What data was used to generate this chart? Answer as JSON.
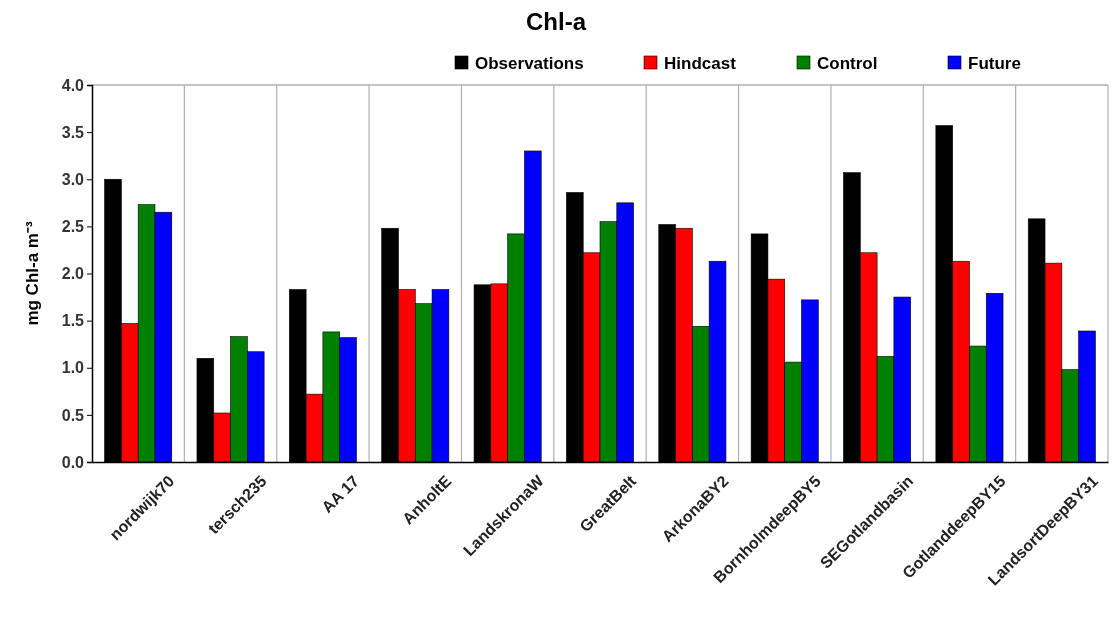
{
  "chart_data": {
    "type": "bar",
    "title": "Chl-a",
    "ylabel": "mg Chl-a m⁻³",
    "categories": [
      "nordwijk70",
      "tersch235",
      "AA 17",
      "AnholtE",
      "LandskronaW",
      "GreatBelt",
      "ArkonaBY2",
      "BornholmdeepBY5",
      "SEGotlandbasin",
      "GotlanddeepBY15",
      "LandsortDeepBY31"
    ],
    "series": [
      {
        "name": "Observations",
        "color": "#000000",
        "values": [
          3.0,
          1.1,
          1.83,
          2.48,
          1.88,
          2.86,
          2.52,
          2.42,
          3.07,
          3.57,
          2.58
        ]
      },
      {
        "name": "Hindcast",
        "color": "#ff0000",
        "values": [
          1.47,
          0.52,
          0.72,
          1.83,
          1.89,
          2.22,
          2.48,
          1.94,
          2.22,
          2.13,
          2.11
        ]
      },
      {
        "name": "Control",
        "color": "#008000",
        "values": [
          2.73,
          1.33,
          1.38,
          1.68,
          2.42,
          2.55,
          1.44,
          1.06,
          1.12,
          1.23,
          0.98
        ]
      },
      {
        "name": "Future",
        "color": "#0000ff",
        "values": [
          2.65,
          1.17,
          1.32,
          1.83,
          3.3,
          2.75,
          2.13,
          1.72,
          1.75,
          1.79,
          1.39
        ]
      }
    ],
    "ylim": [
      0,
      4
    ],
    "yticks": [
      {
        "value": 0,
        "label": "0.0"
      },
      {
        "value": 0.5,
        "label": "0.5"
      },
      {
        "value": 1,
        "label": "1.0"
      },
      {
        "value": 1.5,
        "label": "1.5"
      },
      {
        "value": 2,
        "label": "2.0"
      },
      {
        "value": 2.5,
        "label": "2.5"
      },
      {
        "value": 3,
        "label": "3.0"
      },
      {
        "value": 3.5,
        "label": "3.5"
      },
      {
        "value": 4,
        "label": "4.0"
      }
    ],
    "grid": "x",
    "legend": "top right"
  }
}
